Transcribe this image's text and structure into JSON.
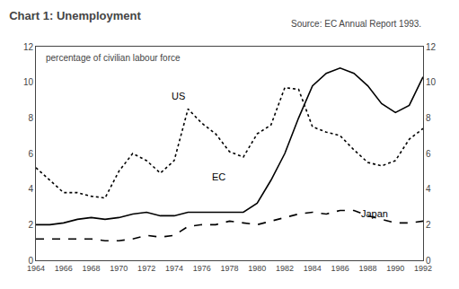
{
  "chart_data": {
    "type": "line",
    "title": "Chart 1: Unemployment",
    "subtitle": "percentage of civilian labour force",
    "source": "Source: EC Annual Report 1993.",
    "x": [
      1964,
      1965,
      1966,
      1967,
      1968,
      1969,
      1970,
      1971,
      1972,
      1973,
      1974,
      1975,
      1976,
      1977,
      1978,
      1979,
      1980,
      1981,
      1982,
      1983,
      1984,
      1985,
      1986,
      1987,
      1988,
      1989,
      1990,
      1991,
      1992
    ],
    "series": [
      {
        "name": "EC",
        "color": "#000000",
        "line_style": "solid",
        "values": [
          2.0,
          2.0,
          2.1,
          2.3,
          2.4,
          2.3,
          2.4,
          2.6,
          2.7,
          2.5,
          2.5,
          2.7,
          2.7,
          2.7,
          2.7,
          2.7,
          3.2,
          4.5,
          6.0,
          8.0,
          9.8,
          10.5,
          10.8,
          10.5,
          9.8,
          8.8,
          8.3,
          8.7,
          10.3
        ]
      },
      {
        "name": "US",
        "color": "#000000",
        "line_style": "dot",
        "values": [
          5.2,
          4.5,
          3.8,
          3.8,
          3.6,
          3.5,
          5.0,
          6.0,
          5.6,
          4.9,
          5.6,
          8.5,
          7.7,
          7.1,
          6.1,
          5.8,
          7.1,
          7.6,
          9.7,
          9.6,
          7.5,
          7.2,
          7.0,
          6.2,
          5.5,
          5.3,
          5.6,
          6.8,
          7.4
        ]
      },
      {
        "name": "Japan",
        "color": "#000000",
        "line_style": "dash",
        "values": [
          1.2,
          1.2,
          1.2,
          1.2,
          1.2,
          1.1,
          1.1,
          1.2,
          1.4,
          1.3,
          1.4,
          1.9,
          2.0,
          2.0,
          2.2,
          2.1,
          2.0,
          2.2,
          2.4,
          2.6,
          2.7,
          2.6,
          2.8,
          2.8,
          2.5,
          2.3,
          2.1,
          2.1,
          2.2
        ]
      }
    ],
    "annotations": [
      {
        "text": "US",
        "x": 1974.3,
        "y": 8.8
      },
      {
        "text": "EC",
        "x": 1977.2,
        "y": 4.3
      },
      {
        "text": "Japan",
        "x": 1988.5,
        "y": 2.2
      }
    ],
    "xlim": [
      1964,
      1992
    ],
    "xticks": [
      1964,
      1966,
      1968,
      1970,
      1972,
      1974,
      1976,
      1978,
      1980,
      1982,
      1984,
      1986,
      1988,
      1990,
      1992
    ],
    "ylim": [
      0,
      12
    ],
    "yticks": [
      0,
      2,
      4,
      6,
      8,
      10,
      12
    ],
    "y2lim": [
      0,
      12
    ],
    "y2ticks": [
      0,
      2,
      4,
      6,
      8,
      10,
      12
    ],
    "grid": false
  }
}
